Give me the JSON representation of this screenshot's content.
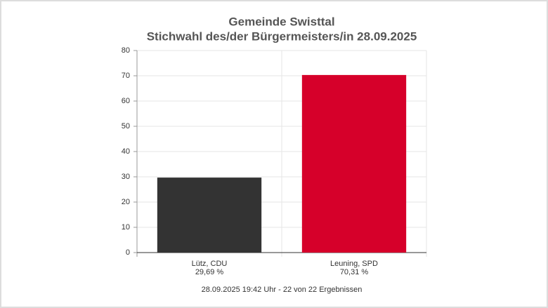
{
  "chart_data": {
    "type": "bar",
    "title": "Gemeinde Swisttal",
    "subtitle": "Stichwahl des/der Bürgermeisters/in 28.09.2025",
    "categories": [
      "Lütz, CDU",
      "Leuning, SPD"
    ],
    "values": [
      29.69,
      70.31
    ],
    "value_labels": [
      "29,69 %",
      "70,31 %"
    ],
    "colors": [
      "#333333",
      "#d6002a"
    ],
    "ylim": [
      0,
      80
    ],
    "yticks": [
      0,
      10,
      20,
      30,
      40,
      50,
      60,
      70,
      80
    ],
    "grid": true,
    "footnote": "28.09.2025 19:42 Uhr - 22 von 22 Ergebnissen"
  }
}
